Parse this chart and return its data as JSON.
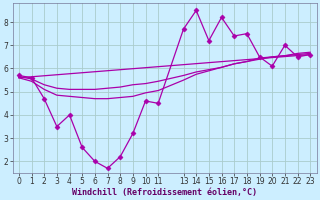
{
  "background_color": "#cceeff",
  "grid_color": "#aacccc",
  "line_color": "#aa00aa",
  "xlim": [
    -0.5,
    23.5
  ],
  "ylim": [
    1.5,
    8.8
  ],
  "yticks": [
    2,
    3,
    4,
    5,
    6,
    7,
    8
  ],
  "xlabel": "Windchill (Refroidissement éolien,°C)",
  "series": [
    {
      "x": [
        0,
        1,
        2,
        3,
        4,
        5,
        6,
        7,
        8,
        9,
        10,
        11,
        13,
        14,
        15,
        16,
        17,
        18,
        19,
        20,
        21,
        22,
        23
      ],
      "y": [
        5.7,
        5.6,
        4.7,
        3.5,
        4.0,
        2.6,
        2.0,
        1.7,
        2.2,
        3.2,
        4.6,
        4.5,
        7.7,
        8.5,
        7.2,
        8.2,
        7.4,
        7.5,
        6.5,
        6.1,
        7.0,
        6.5,
        6.6
      ],
      "marker": true
    },
    {
      "x": [
        0,
        1,
        2,
        3,
        4,
        5,
        6,
        7,
        8,
        9,
        10,
        11,
        13,
        14,
        15,
        16,
        17,
        18,
        19,
        20,
        21,
        22,
        23
      ],
      "y": [
        5.65,
        5.55,
        5.3,
        5.15,
        5.1,
        5.1,
        5.1,
        5.15,
        5.2,
        5.3,
        5.35,
        5.45,
        5.7,
        5.85,
        5.95,
        6.05,
        6.2,
        6.3,
        6.45,
        6.5,
        6.55,
        6.65,
        6.7
      ],
      "marker": false
    },
    {
      "x": [
        0,
        1,
        2,
        3,
        4,
        5,
        6,
        7,
        8,
        9,
        10,
        11,
        13,
        14,
        15,
        16,
        17,
        18,
        19,
        20,
        21,
        22,
        23
      ],
      "y": [
        5.6,
        5.45,
        5.1,
        4.85,
        4.8,
        4.75,
        4.7,
        4.7,
        4.75,
        4.8,
        4.95,
        5.05,
        5.5,
        5.75,
        5.9,
        6.05,
        6.2,
        6.3,
        6.4,
        6.5,
        6.55,
        6.6,
        6.65
      ],
      "marker": false
    },
    {
      "x": [
        0,
        23
      ],
      "y": [
        5.6,
        6.6
      ],
      "marker": false
    }
  ],
  "marker_style": "D",
  "markersize": 2.5,
  "linewidth": 0.9
}
